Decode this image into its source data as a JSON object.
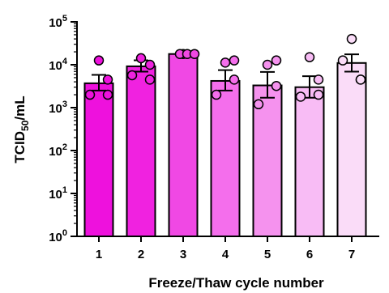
{
  "chart_data": {
    "type": "bar",
    "title": "",
    "xlabel": "Freeze/Thaw cycle number",
    "ylabel": {
      "main": "TCID",
      "sub": "50",
      "suffix": "/mL"
    },
    "yscale": "log",
    "ylim": [
      1,
      100000
    ],
    "yticks": [
      {
        "value": 1,
        "base": "10",
        "exp": "0"
      },
      {
        "value": 10,
        "base": "10",
        "exp": "1"
      },
      {
        "value": 100,
        "base": "10",
        "exp": "2"
      },
      {
        "value": 1000,
        "base": "10",
        "exp": "3"
      },
      {
        "value": 10000,
        "base": "10",
        "exp": "4"
      },
      {
        "value": 100000,
        "base": "10",
        "exp": "5"
      }
    ],
    "categories": [
      "1",
      "2",
      "3",
      "4",
      "5",
      "6",
      "7"
    ],
    "values": [
      3700,
      9200,
      17800,
      4200,
      3300,
      3000,
      11000
    ],
    "error_upper": [
      5800,
      12700,
      18600,
      7500,
      6800,
      5400,
      17500
    ],
    "error_lower": [
      2500,
      6900,
      17100,
      2500,
      1700,
      1700,
      6900
    ],
    "points": [
      [
        12600,
        2000,
        4500,
        2000
      ],
      [
        14200,
        5700,
        10000,
        4500
      ],
      [
        17800,
        17800,
        17800,
        17800
      ],
      [
        11200,
        2000,
        4500,
        12600
      ],
      [
        10000,
        1200,
        3200,
        12600
      ],
      [
        15000,
        1800,
        2000,
        4500
      ],
      [
        40000,
        12600,
        4500,
        4500
      ]
    ],
    "bar_colors": [
      "#ee11dd",
      "#f022e0",
      "#f048e4",
      "#f46eec",
      "#f592ee",
      "#f8bcf5",
      "#fadcf8"
    ],
    "point_colors": [
      "#ee11dd",
      "#f022e0",
      "#f048e4",
      "#f46eec",
      "#f592ee",
      "#f8bcf5",
      "#fadcf8"
    ],
    "grid": false,
    "legend": "none"
  }
}
